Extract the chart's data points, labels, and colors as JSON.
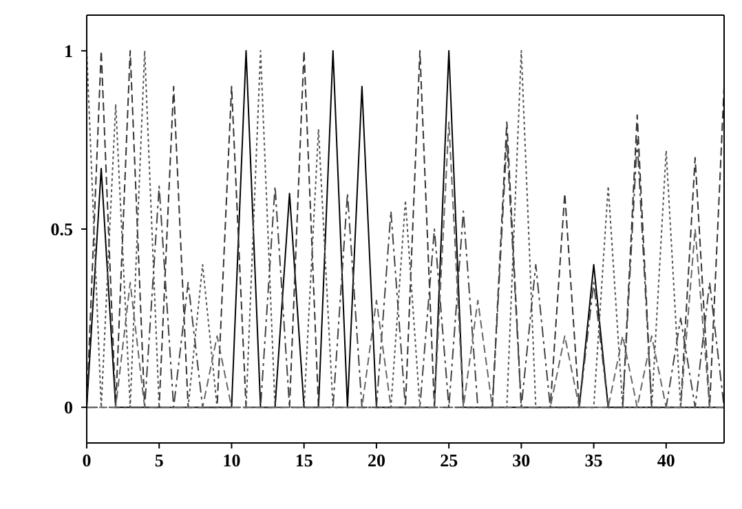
{
  "chart_data": {
    "type": "line",
    "x": [
      0,
      1,
      2,
      3,
      4,
      5,
      6,
      7,
      8,
      9,
      10,
      11,
      12,
      13,
      14,
      15,
      16,
      17,
      18,
      19,
      20,
      21,
      22,
      23,
      24,
      25,
      26,
      27,
      28,
      29,
      30,
      31,
      32,
      33,
      34,
      35,
      36,
      37,
      38,
      39,
      40,
      41,
      42,
      43,
      44
    ],
    "xlim": [
      0,
      44
    ],
    "xticks": [
      0,
      5,
      10,
      15,
      20,
      25,
      30,
      35,
      40
    ],
    "ylim": [
      -0.1,
      1.1
    ],
    "yticks": [
      0,
      0.5,
      1
    ],
    "grid": false,
    "legend": false,
    "marker": "none",
    "series": [
      {
        "color": "#000000",
        "line_style": "solid",
        "values": [
          0,
          0.67,
          0,
          0,
          0,
          0,
          0,
          0,
          0,
          0,
          0,
          1,
          0,
          0,
          0.6,
          0,
          0,
          1,
          0,
          0.9,
          0,
          0,
          0,
          0,
          0,
          1,
          0,
          0,
          0,
          0,
          0,
          0,
          0,
          0,
          0,
          0.4,
          0,
          0,
          0,
          0,
          0,
          0,
          0,
          0,
          0
        ]
      },
      {
        "color": "#333333",
        "line_style": "dashed",
        "values": [
          0,
          1,
          0,
          1,
          0,
          0,
          0.9,
          0,
          0,
          0,
          0.9,
          0,
          0,
          0,
          0,
          1,
          0,
          0,
          0,
          0,
          0,
          0,
          0,
          1,
          0,
          0,
          0,
          0,
          0,
          0.8,
          0,
          0,
          0,
          0.6,
          0,
          0,
          0,
          0,
          0.82,
          0,
          0,
          0,
          0.7,
          0,
          0.9
        ]
      },
      {
        "color": "#555555",
        "line_style": "dotted",
        "values": [
          1,
          0,
          0.85,
          0,
          1,
          0,
          0,
          0,
          0.4,
          0,
          0,
          0,
          1,
          0,
          0,
          0,
          0.78,
          0,
          0,
          0,
          0,
          0,
          0.58,
          0,
          0,
          0,
          0,
          0,
          0,
          0,
          1,
          0,
          0,
          0,
          0,
          0,
          0.62,
          0,
          0,
          0,
          0.72,
          0,
          0,
          0,
          0
        ]
      },
      {
        "color": "#444444",
        "line_style": "dashdot",
        "values": [
          0,
          0,
          0,
          0,
          0,
          0.62,
          0,
          0.35,
          0,
          0,
          0,
          0,
          0,
          0.62,
          0,
          0,
          0,
          0,
          0.6,
          0,
          0,
          0.55,
          0,
          0,
          0.5,
          0,
          0.55,
          0,
          0,
          0.75,
          0,
          0.4,
          0,
          0,
          0,
          0.35,
          0,
          0,
          0.75,
          0,
          0,
          0.25,
          0,
          0.35,
          0
        ]
      },
      {
        "color": "#666666",
        "line_style": "dashed",
        "values": [
          0,
          0,
          0,
          0.35,
          0,
          0,
          0,
          0,
          0,
          0.2,
          0,
          0,
          0,
          0,
          0,
          0,
          0,
          0,
          0,
          0,
          0.3,
          0,
          0,
          0,
          0,
          0.8,
          0,
          0.3,
          0,
          0,
          0,
          0,
          0,
          0.2,
          0,
          0,
          0,
          0.2,
          0,
          0.2,
          0,
          0,
          0.5,
          0,
          0
        ]
      }
    ]
  }
}
